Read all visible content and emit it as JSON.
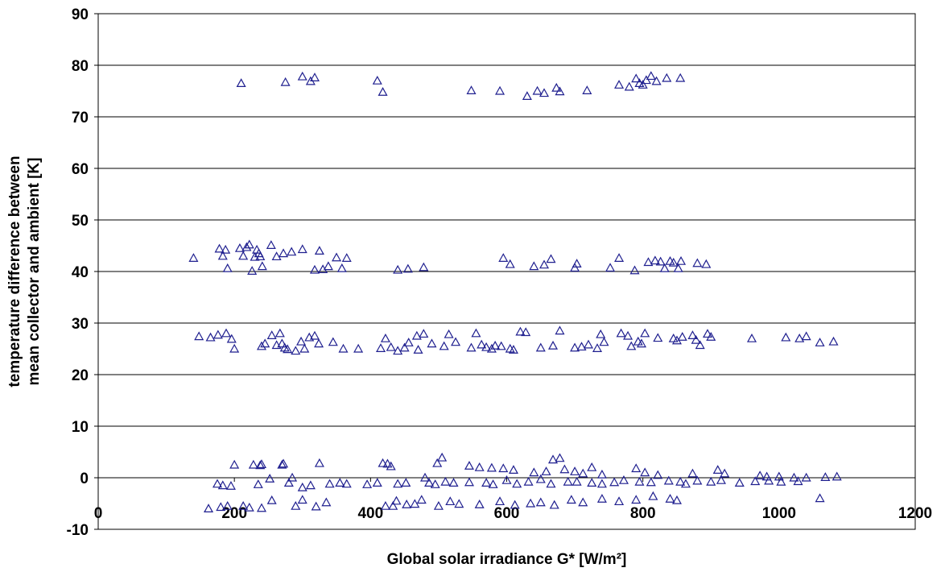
{
  "chart_data": {
    "type": "scatter",
    "title": "",
    "xlabel": "Global solar irradiance G* [W/m²]",
    "ylabel": [
      "temperature difference between",
      "mean collector and ambient [K]"
    ],
    "xlim": [
      0,
      1200
    ],
    "ylim": [
      -10,
      90
    ],
    "xticks": [
      0,
      200,
      400,
      600,
      800,
      1000,
      1200
    ],
    "yticks": [
      -10,
      0,
      10,
      20,
      30,
      40,
      50,
      60,
      70,
      80,
      90
    ],
    "grid": "horizontal",
    "legend": "none",
    "marker": "open-triangle",
    "marker_color": "#1f1f8f",
    "series": [
      {
        "points": [
          [
            210,
            76.5
          ],
          [
            275,
            76.7
          ],
          [
            300,
            77.8
          ],
          [
            312,
            76.9
          ],
          [
            318,
            77.6
          ],
          [
            410,
            77.0
          ],
          [
            418,
            74.8
          ],
          [
            548,
            75.1
          ],
          [
            590,
            75.0
          ],
          [
            630,
            74.0
          ],
          [
            645,
            75.0
          ],
          [
            655,
            74.6
          ],
          [
            673,
            75.6
          ],
          [
            678,
            74.9
          ],
          [
            718,
            75.1
          ],
          [
            765,
            76.2
          ],
          [
            780,
            75.8
          ],
          [
            790,
            77.4
          ],
          [
            795,
            76.5
          ],
          [
            800,
            76.2
          ],
          [
            805,
            77.1
          ],
          [
            812,
            77.9
          ],
          [
            820,
            76.9
          ],
          [
            835,
            77.5
          ],
          [
            855,
            77.5
          ],
          [
            140,
            42.6
          ],
          [
            178,
            44.4
          ],
          [
            183,
            43.0
          ],
          [
            187,
            44.2
          ],
          [
            190,
            40.6
          ],
          [
            208,
            44.5
          ],
          [
            213,
            43.0
          ],
          [
            218,
            44.7
          ],
          [
            222,
            45.2
          ],
          [
            226,
            40.1
          ],
          [
            230,
            42.8
          ],
          [
            233,
            44.2
          ],
          [
            236,
            43.5
          ],
          [
            238,
            42.9
          ],
          [
            241,
            41.0
          ],
          [
            254,
            45.1
          ],
          [
            262,
            42.9
          ],
          [
            272,
            43.5
          ],
          [
            284,
            43.8
          ],
          [
            300,
            44.3
          ],
          [
            318,
            40.3
          ],
          [
            325,
            44.0
          ],
          [
            330,
            40.4
          ],
          [
            338,
            41.0
          ],
          [
            350,
            42.7
          ],
          [
            358,
            40.6
          ],
          [
            365,
            42.6
          ],
          [
            440,
            40.3
          ],
          [
            455,
            40.5
          ],
          [
            478,
            40.8
          ],
          [
            595,
            42.6
          ],
          [
            605,
            41.4
          ],
          [
            640,
            41.0
          ],
          [
            655,
            41.3
          ],
          [
            665,
            42.4
          ],
          [
            700,
            40.7
          ],
          [
            703,
            41.5
          ],
          [
            752,
            40.7
          ],
          [
            765,
            42.6
          ],
          [
            788,
            40.2
          ],
          [
            808,
            41.8
          ],
          [
            818,
            42.1
          ],
          [
            826,
            41.9
          ],
          [
            832,
            40.6
          ],
          [
            840,
            42.0
          ],
          [
            845,
            41.7
          ],
          [
            852,
            40.6
          ],
          [
            856,
            42.0
          ],
          [
            880,
            41.6
          ],
          [
            893,
            41.4
          ],
          [
            148,
            27.4
          ],
          [
            165,
            27.2
          ],
          [
            176,
            27.7
          ],
          [
            188,
            28.0
          ],
          [
            196,
            26.9
          ],
          [
            200,
            25.0
          ],
          [
            240,
            25.5
          ],
          [
            245,
            26.0
          ],
          [
            255,
            27.6
          ],
          [
            262,
            25.7
          ],
          [
            267,
            28.0
          ],
          [
            270,
            26.0
          ],
          [
            274,
            25.2
          ],
          [
            278,
            24.9
          ],
          [
            290,
            24.6
          ],
          [
            298,
            26.4
          ],
          [
            303,
            25.0
          ],
          [
            310,
            27.2
          ],
          [
            318,
            27.5
          ],
          [
            324,
            26.0
          ],
          [
            345,
            26.3
          ],
          [
            360,
            25.0
          ],
          [
            382,
            25.0
          ],
          [
            415,
            25.1
          ],
          [
            422,
            27.0
          ],
          [
            430,
            25.3
          ],
          [
            440,
            24.6
          ],
          [
            450,
            25.2
          ],
          [
            456,
            26.2
          ],
          [
            468,
            27.5
          ],
          [
            470,
            24.8
          ],
          [
            478,
            27.9
          ],
          [
            490,
            26.0
          ],
          [
            508,
            25.5
          ],
          [
            515,
            27.8
          ],
          [
            525,
            26.3
          ],
          [
            548,
            25.2
          ],
          [
            555,
            28.0
          ],
          [
            563,
            25.8
          ],
          [
            570,
            25.3
          ],
          [
            578,
            25.0
          ],
          [
            583,
            25.6
          ],
          [
            592,
            25.5
          ],
          [
            605,
            25.0
          ],
          [
            610,
            24.8
          ],
          [
            620,
            28.3
          ],
          [
            628,
            28.2
          ],
          [
            650,
            25.2
          ],
          [
            668,
            25.6
          ],
          [
            678,
            28.5
          ],
          [
            700,
            25.2
          ],
          [
            710,
            25.4
          ],
          [
            720,
            25.8
          ],
          [
            733,
            25.1
          ],
          [
            738,
            27.8
          ],
          [
            743,
            26.3
          ],
          [
            768,
            28.0
          ],
          [
            778,
            27.5
          ],
          [
            783,
            25.5
          ],
          [
            793,
            26.4
          ],
          [
            798,
            26.0
          ],
          [
            803,
            28.0
          ],
          [
            822,
            27.1
          ],
          [
            845,
            27.0
          ],
          [
            850,
            26.6
          ],
          [
            858,
            27.3
          ],
          [
            873,
            27.6
          ],
          [
            878,
            26.7
          ],
          [
            884,
            25.7
          ],
          [
            895,
            27.9
          ],
          [
            900,
            27.3
          ],
          [
            960,
            27.0
          ],
          [
            1010,
            27.2
          ],
          [
            1030,
            27.0
          ],
          [
            1040,
            27.4
          ],
          [
            1060,
            26.2
          ],
          [
            1080,
            26.4
          ],
          [
            200,
            2.5
          ],
          [
            228,
            2.5
          ],
          [
            238,
            2.4
          ],
          [
            240,
            2.6
          ],
          [
            270,
            2.5
          ],
          [
            272,
            2.7
          ],
          [
            325,
            2.8
          ],
          [
            418,
            2.8
          ],
          [
            425,
            2.7
          ],
          [
            430,
            2.2
          ],
          [
            498,
            2.8
          ],
          [
            505,
            3.9
          ],
          [
            545,
            2.3
          ],
          [
            560,
            2.0
          ],
          [
            578,
            1.9
          ],
          [
            595,
            1.8
          ],
          [
            610,
            1.5
          ],
          [
            640,
            1.0
          ],
          [
            658,
            1.2
          ],
          [
            668,
            3.5
          ],
          [
            678,
            3.8
          ],
          [
            685,
            1.6
          ],
          [
            700,
            1.2
          ],
          [
            712,
            0.8
          ],
          [
            725,
            2.0
          ],
          [
            740,
            0.6
          ],
          [
            790,
            1.8
          ],
          [
            803,
            1.0
          ],
          [
            822,
            0.5
          ],
          [
            873,
            0.8
          ],
          [
            910,
            1.5
          ],
          [
            920,
            0.8
          ],
          [
            972,
            0.4
          ],
          [
            982,
            0.2
          ],
          [
            1000,
            0.2
          ],
          [
            1022,
            0.0
          ],
          [
            1040,
            0.0
          ],
          [
            1068,
            0.1
          ],
          [
            1085,
            0.2
          ],
          [
            175,
            -1.2
          ],
          [
            183,
            -1.5
          ],
          [
            195,
            -1.6
          ],
          [
            235,
            -1.3
          ],
          [
            252,
            -0.2
          ],
          [
            280,
            -1.0
          ],
          [
            285,
            0.0
          ],
          [
            300,
            -1.9
          ],
          [
            312,
            -1.5
          ],
          [
            340,
            -1.2
          ],
          [
            355,
            -1.0
          ],
          [
            365,
            -1.2
          ],
          [
            395,
            -1.3
          ],
          [
            410,
            -1.0
          ],
          [
            440,
            -1.2
          ],
          [
            452,
            -1.0
          ],
          [
            480,
            0.0
          ],
          [
            486,
            -1.0
          ],
          [
            495,
            -1.3
          ],
          [
            510,
            -0.8
          ],
          [
            522,
            -1.0
          ],
          [
            545,
            -0.9
          ],
          [
            570,
            -1.0
          ],
          [
            580,
            -1.3
          ],
          [
            600,
            -0.5
          ],
          [
            615,
            -1.2
          ],
          [
            632,
            -0.8
          ],
          [
            650,
            -0.3
          ],
          [
            665,
            -1.2
          ],
          [
            690,
            -0.8
          ],
          [
            703,
            -0.8
          ],
          [
            725,
            -1.0
          ],
          [
            740,
            -1.2
          ],
          [
            758,
            -0.9
          ],
          [
            772,
            -0.5
          ],
          [
            795,
            -0.8
          ],
          [
            812,
            -0.9
          ],
          [
            838,
            -0.6
          ],
          [
            855,
            -0.8
          ],
          [
            863,
            -1.2
          ],
          [
            880,
            -0.6
          ],
          [
            900,
            -0.8
          ],
          [
            915,
            -0.5
          ],
          [
            942,
            -1.0
          ],
          [
            965,
            -0.7
          ],
          [
            985,
            -0.6
          ],
          [
            1003,
            -0.8
          ],
          [
            1028,
            -0.7
          ],
          [
            162,
            -6.0
          ],
          [
            180,
            -5.7
          ],
          [
            190,
            -5.5
          ],
          [
            213,
            -5.5
          ],
          [
            222,
            -5.8
          ],
          [
            240,
            -5.9
          ],
          [
            255,
            -4.4
          ],
          [
            290,
            -5.5
          ],
          [
            300,
            -4.3
          ],
          [
            320,
            -5.6
          ],
          [
            335,
            -4.8
          ],
          [
            422,
            -5.5
          ],
          [
            433,
            -5.5
          ],
          [
            438,
            -4.5
          ],
          [
            453,
            -5.2
          ],
          [
            465,
            -5.1
          ],
          [
            475,
            -4.3
          ],
          [
            500,
            -5.5
          ],
          [
            517,
            -4.6
          ],
          [
            530,
            -5.1
          ],
          [
            560,
            -5.2
          ],
          [
            590,
            -4.6
          ],
          [
            612,
            -5.3
          ],
          [
            635,
            -5.0
          ],
          [
            650,
            -4.8
          ],
          [
            670,
            -5.3
          ],
          [
            695,
            -4.3
          ],
          [
            712,
            -4.8
          ],
          [
            740,
            -4.1
          ],
          [
            765,
            -4.6
          ],
          [
            790,
            -4.3
          ],
          [
            815,
            -3.6
          ],
          [
            840,
            -4.1
          ],
          [
            850,
            -4.4
          ],
          [
            1060,
            -4.0
          ]
        ]
      }
    ]
  }
}
